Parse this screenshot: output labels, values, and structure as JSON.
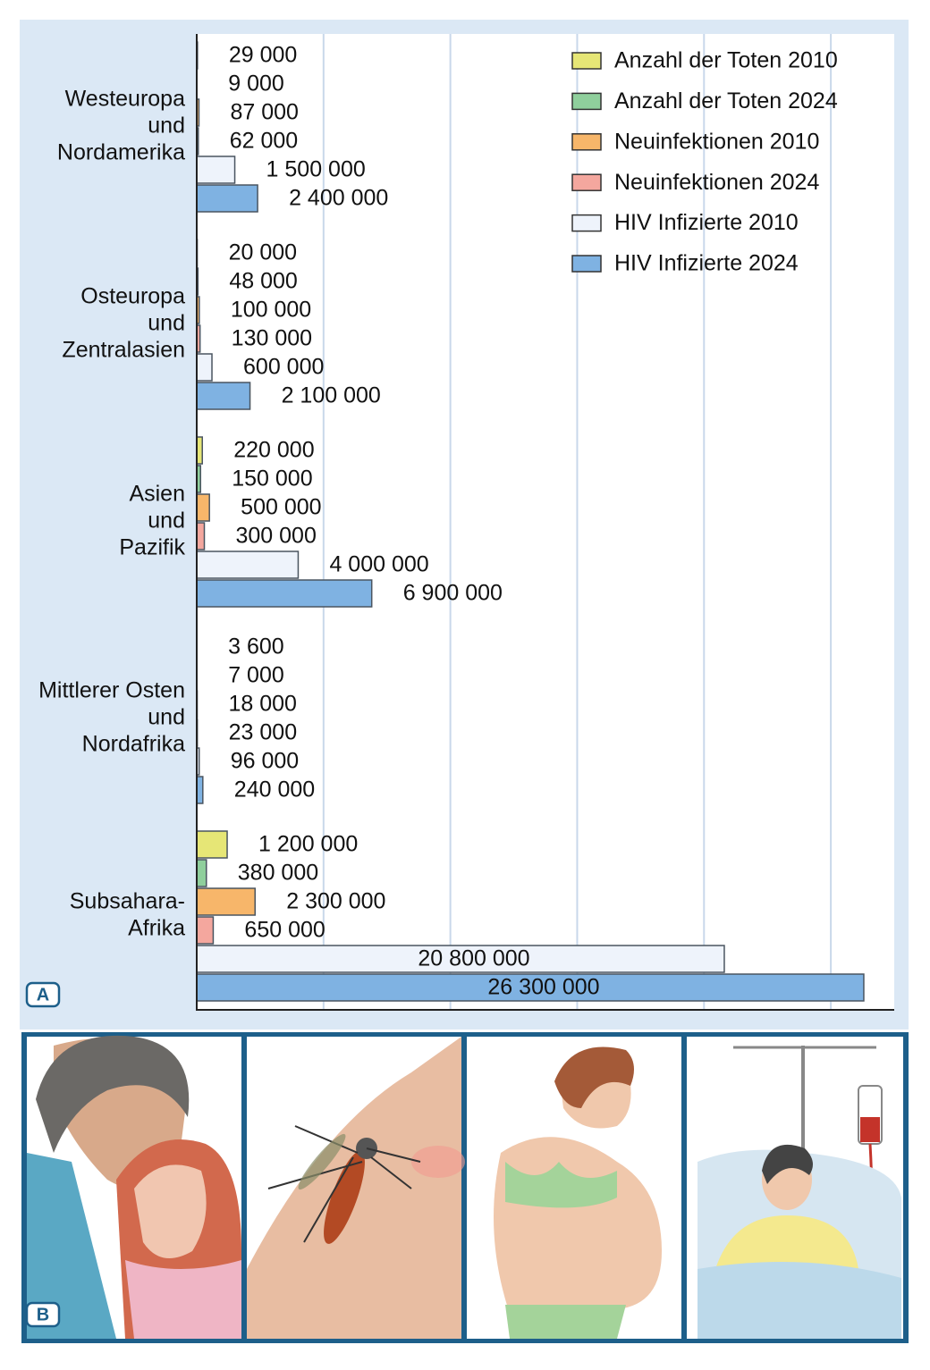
{
  "chart_data": {
    "type": "bar",
    "orientation": "horizontal",
    "categories": [
      [
        "Westeuropa",
        "und",
        "Nordamerika"
      ],
      [
        "Osteuropa",
        "und",
        "Zentralasien"
      ],
      [
        "Asien",
        "und",
        "Pazifik"
      ],
      [
        "Mittlerer Osten",
        "und",
        "Nordafrika"
      ],
      [
        "Subsahara-",
        "Afrika"
      ]
    ],
    "series": [
      {
        "name": "Anzahl der Toten 2010",
        "color": "#e6e676",
        "values": [
          29000,
          20000,
          220000,
          3600,
          1200000
        ],
        "value_labels": [
          "29 000",
          "20 000",
          "220 000",
          "3 600",
          "1 200 000"
        ]
      },
      {
        "name": "Anzahl der Toten 2024",
        "color": "#8fcf9c",
        "values": [
          9000,
          48000,
          150000,
          7000,
          380000
        ],
        "value_labels": [
          "9 000",
          "48 000",
          "150 000",
          "7 000",
          "380 000"
        ]
      },
      {
        "name": "Neuinfektionen 2010",
        "color": "#f7b66a",
        "values": [
          87000,
          100000,
          500000,
          18000,
          2300000
        ],
        "value_labels": [
          "87 000",
          "100 000",
          "500 000",
          "18 000",
          "2 300 000"
        ]
      },
      {
        "name": "Neuinfektionen 2024",
        "color": "#f4a79e",
        "values": [
          62000,
          130000,
          300000,
          23000,
          650000
        ],
        "value_labels": [
          "62 000",
          "130 000",
          "300 000",
          "23 000",
          "650 000"
        ]
      },
      {
        "name": "HIV Infizierte 2010",
        "color": "#eef3fb",
        "values": [
          1500000,
          600000,
          4000000,
          96000,
          20800000
        ],
        "value_labels": [
          "1 500 000",
          "600 000",
          "4 000 000",
          "96 000",
          "20 800 000"
        ]
      },
      {
        "name": "HIV Infizierte 2024",
        "color": "#7fb2e2",
        "values": [
          2400000,
          2100000,
          6900000,
          240000,
          26300000
        ],
        "value_labels": [
          "2 400 000",
          "2 100 000",
          "6 900 000",
          "240 000",
          "26 300 000"
        ]
      }
    ],
    "xlim": [
      0,
      27500000
    ],
    "xgrid": [
      5000000,
      10000000,
      15000000,
      20000000,
      25000000
    ],
    "legend": "top-right"
  },
  "panels": {
    "chart": "A",
    "pictures": "B"
  }
}
